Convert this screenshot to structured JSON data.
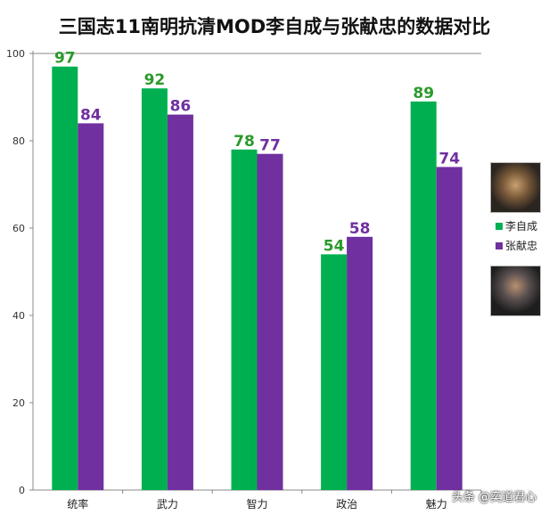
{
  "chart_data": {
    "type": "bar",
    "title": "三国志11南明抗清MOD李自成与张献忠的数据对比",
    "categories": [
      "统率",
      "武力",
      "智力",
      "政治",
      "魅力"
    ],
    "series": [
      {
        "name": "李自成",
        "values": [
          97,
          92,
          78,
          54,
          89
        ],
        "color": "#00b050"
      },
      {
        "name": "张献忠",
        "values": [
          84,
          86,
          77,
          58,
          74
        ],
        "color": "#7030a0"
      }
    ],
    "ylim": [
      0,
      100
    ],
    "yticks": [
      0,
      20,
      40,
      60,
      80,
      100
    ],
    "grid": false,
    "legend_placement": "right"
  },
  "watermark": "头条 @奕道君心",
  "portraits": [
    "李自成 portrait",
    "张献忠 portrait"
  ]
}
